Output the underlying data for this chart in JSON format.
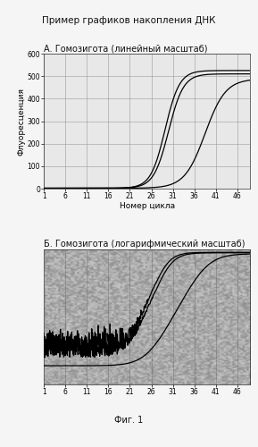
{
  "title": "Пример графиков накопления ДНК",
  "subtitle_a": "А. Гомозигота (линейный масштаб)",
  "subtitle_b": "Б. Гомозигота (логарифмический масштаб)",
  "fig_label": "Фиг. 1",
  "xlabel": "Номер цикла",
  "ylabel_a": "Флуоресценция",
  "x_ticks": [
    1,
    6,
    11,
    16,
    21,
    26,
    31,
    36,
    41,
    46
  ],
  "ylim_a": [
    0,
    600
  ],
  "y_ticks_a": [
    0,
    100,
    200,
    300,
    400,
    500,
    600
  ],
  "x_range": [
    1,
    49
  ],
  "background_color": "#f0f0f0",
  "plot_bg_a": "#e8e8e8",
  "plot_bg_b": "#aaaaaa",
  "line_color": "#000000",
  "grid_color_a": "#999999",
  "grid_color_b": "#777777",
  "title_fontsize": 7.5,
  "subtitle_fontsize": 7,
  "label_fontsize": 6.5,
  "tick_fontsize": 5.5,
  "figlabel_fontsize": 7
}
